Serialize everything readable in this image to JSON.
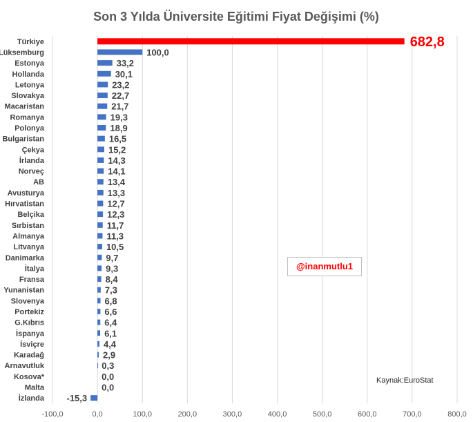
{
  "chart_data": {
    "type": "bar",
    "orientation": "horizontal",
    "title": "Son 3 Yılda Üniversite Eğitimi Fiyat Değişimi (%)",
    "categories": [
      "Türkiye",
      "Lüksemburg",
      "Estonya",
      "Hollanda",
      "Letonya",
      "Slovakya",
      "Macaristan",
      "Romanya",
      "Polonya",
      "Bulgaristan",
      "Çekya",
      "İrlanda",
      "Norveç",
      "AB",
      "Avusturya",
      "Hırvatistan",
      "Belçika",
      "Sırbistan",
      "Almanya",
      "Litvanya",
      "Danimarka",
      "İtalya",
      "Fransa",
      "Yunanistan",
      "Slovenya",
      "Portekiz",
      "G.Kıbrıs",
      "İspanya",
      "İsviçre",
      "Karadağ",
      "Arnavutluk",
      "Kosova*",
      "Malta",
      "İzlanda"
    ],
    "values": [
      682.8,
      100.0,
      33.2,
      30.1,
      23.2,
      22.7,
      21.7,
      19.3,
      18.9,
      16.5,
      15.2,
      14.3,
      14.1,
      13.4,
      13.3,
      12.7,
      12.3,
      11.7,
      11.3,
      10.5,
      9.7,
      9.3,
      8.4,
      7.3,
      6.8,
      6.6,
      6.4,
      6.1,
      4.4,
      2.9,
      0.3,
      0.0,
      0.0,
      -15.3
    ],
    "value_labels": [
      "682,8",
      "100,0",
      "33,2",
      "30,1",
      "23,2",
      "22,7",
      "21,7",
      "19,3",
      "18,9",
      "16,5",
      "15,2",
      "14,3",
      "14,1",
      "13,4",
      "13,3",
      "12,7",
      "12,3",
      "11,7",
      "11,3",
      "10,5",
      "9,7",
      "9,3",
      "8,4",
      "7,3",
      "6,8",
      "6,6",
      "6,4",
      "6,1",
      "4,4",
      "2,9",
      "0,3",
      "0,0",
      "0,0",
      "-15,3"
    ],
    "xlim": [
      -100,
      800
    ],
    "xticks": [
      -100,
      0,
      100,
      200,
      300,
      400,
      500,
      600,
      700,
      800
    ],
    "xtick_labels": [
      "-100,0",
      "0,0",
      "100,0",
      "200,0",
      "300,0",
      "400,0",
      "500,0",
      "600,0",
      "700,0",
      "800,0"
    ],
    "grid": true,
    "bar_color": "#4472c4",
    "highlight_color": "#ff0000",
    "highlight_index": 0
  },
  "watermark": "@inanmutlu1",
  "source": "Kaynak:EuroStat"
}
